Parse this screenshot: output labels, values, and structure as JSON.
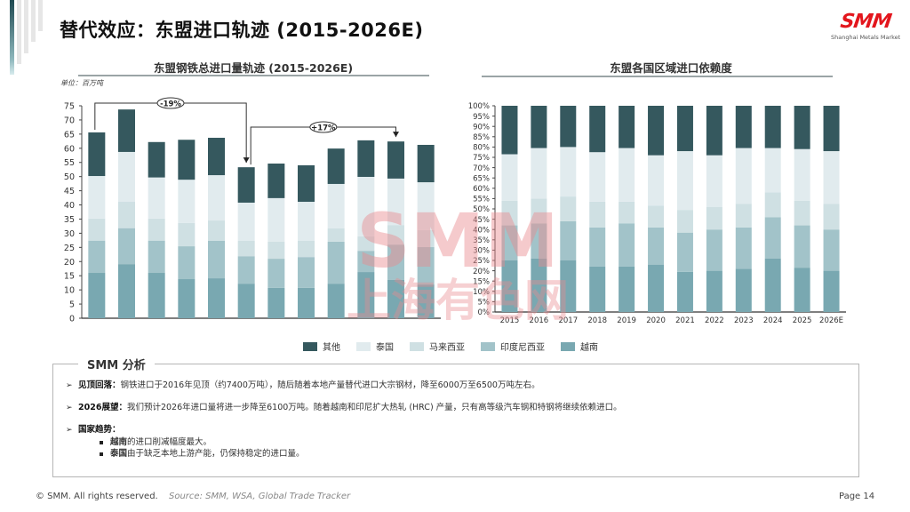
{
  "page": {
    "title": "替代效应：东盟进口轨迹 (2015-2026E)",
    "logo_mark": "SMM",
    "logo_sub": "Shanghai Metals Market",
    "watermark_top": "SMM",
    "watermark_bottom": "上海有色网"
  },
  "colors": {
    "其他": "#35585e",
    "泰国": "#e1ebee",
    "马来西亚": "#cfe0e3",
    "印度尼西亚": "#a2c3c9",
    "越南": "#79a8b1",
    "watermark": "#e88a8f"
  },
  "legend": [
    {
      "label": "其他",
      "key": "其他"
    },
    {
      "label": "泰国",
      "key": "泰国"
    },
    {
      "label": "马来西亚",
      "key": "马来西亚"
    },
    {
      "label": "印度尼西亚",
      "key": "印度尼西亚"
    },
    {
      "label": "越南",
      "key": "越南"
    }
  ],
  "chart_data": [
    {
      "type": "bar",
      "stacked": true,
      "title": "东盟钢铁总进口量轨迹 (2015-2026E)",
      "unit_label": "单位：百万吨",
      "xlabel": "",
      "ylabel": "",
      "ylim": [
        0,
        75
      ],
      "yticks": [
        0,
        5,
        10,
        15,
        20,
        25,
        30,
        35,
        40,
        45,
        50,
        55,
        60,
        65,
        70,
        75
      ],
      "categories": [
        "2015",
        "2016",
        "2017",
        "2018",
        "2019",
        "2020",
        "2021",
        "2022",
        "2023",
        "2024",
        "2025",
        "2026E"
      ],
      "show_x_labels": false,
      "grid": false,
      "series": [
        {
          "name": "越南",
          "values": [
            16.0,
            19.1,
            16.0,
            13.8,
            14.1,
            12.2,
            10.7,
            10.7,
            12.2,
            16.3,
            13.5,
            11.9
          ]
        },
        {
          "name": "印度尼西亚",
          "values": [
            11.4,
            12.7,
            11.4,
            11.6,
            13.2,
            9.7,
            10.3,
            10.9,
            14.8,
            7.5,
            12.5,
            13.2
          ]
        },
        {
          "name": "马来西亚",
          "values": [
            7.8,
            9.3,
            7.8,
            8.2,
            7.2,
            5.4,
            6.0,
            5.7,
            4.7,
            5.1,
            6.9,
            6.0
          ]
        },
        {
          "name": "泰国",
          "values": [
            15.0,
            17.6,
            14.5,
            15.3,
            16.0,
            13.5,
            15.4,
            13.8,
            15.7,
            21.0,
            16.4,
            16.9
          ]
        },
        {
          "name": "其他",
          "values": [
            15.4,
            15.0,
            12.5,
            14.1,
            13.2,
            12.5,
            12.2,
            12.9,
            12.5,
            12.9,
            13.1,
            13.2
          ]
        }
      ],
      "totals": [
        65.6,
        73.7,
        62.2,
        63.0,
        63.7,
        53.3,
        54.6,
        54.0,
        59.9,
        62.8,
        62.4,
        61.2
      ],
      "annotations": [
        {
          "label": "-19%",
          "from": "2015",
          "to": "2020"
        },
        {
          "label": "+17%",
          "from": "2020",
          "to": "2025"
        }
      ]
    },
    {
      "type": "bar",
      "stacked": true,
      "percent": true,
      "title": "东盟各国区域进口依赖度",
      "xlabel": "",
      "ylabel": "",
      "ylim": [
        0,
        100
      ],
      "yticks": [
        "0%",
        "5%",
        "10%",
        "15%",
        "20%",
        "25%",
        "30%",
        "35%",
        "40%",
        "45%",
        "50%",
        "55%",
        "60%",
        "65%",
        "70%",
        "75%",
        "80%",
        "85%",
        "90%",
        "95%",
        "100%"
      ],
      "categories": [
        "2015",
        "2016",
        "2017",
        "2018",
        "2019",
        "2020",
        "2021",
        "2022",
        "2023",
        "2024",
        "2025",
        "2026E"
      ],
      "grid": false,
      "series": [
        {
          "name": "越南",
          "values": [
            25,
            26,
            25,
            22,
            22,
            23,
            19.5,
            20,
            21,
            26,
            21.5,
            20
          ]
        },
        {
          "name": "印度尼西亚",
          "values": [
            17,
            17,
            19,
            19,
            21,
            18,
            19,
            20,
            20,
            20,
            20.5,
            20
          ]
        },
        {
          "name": "马来西亚",
          "values": [
            12,
            12,
            12,
            12.5,
            10.5,
            10.5,
            11,
            11,
            11.5,
            12,
            12,
            12.5
          ]
        },
        {
          "name": "泰国",
          "values": [
            22.5,
            24.5,
            24,
            24,
            26,
            24.5,
            28.5,
            25,
            27,
            21.5,
            25,
            25.5
          ]
        },
        {
          "name": "其他",
          "values": [
            23.5,
            20.5,
            20,
            22.5,
            20.5,
            24,
            22,
            24,
            20.5,
            20.5,
            21,
            22
          ]
        }
      ]
    }
  ],
  "analysis": {
    "title": "SMM 分析",
    "bullets": [
      {
        "label": "见顶回落：",
        "text": "钢铁进口于2016年见顶（约7400万吨），随后随着本地产量替代进口大宗钢材，降至6000万至6500万吨左右。"
      },
      {
        "label": "2026展望：",
        "text": "我们预计2026年进口量将进一步降至6100万吨。随着越南和印尼扩大热轧 (HRC) 产量，只有高等级汽车钢和特钢将继续依赖进口。"
      },
      {
        "label": "国家趋势：",
        "text": ""
      }
    ],
    "sub_bullets": [
      {
        "label": "越南",
        "text": "的进口削减幅度最大。"
      },
      {
        "label": "泰国",
        "text": "由于缺乏本地上游产能，仍保持稳定的进口量。"
      }
    ]
  },
  "footer": {
    "copyright": "© SMM. All rights reserved.",
    "source": "Source: SMM, WSA, Global Trade Tracker",
    "page": "Page 14"
  }
}
